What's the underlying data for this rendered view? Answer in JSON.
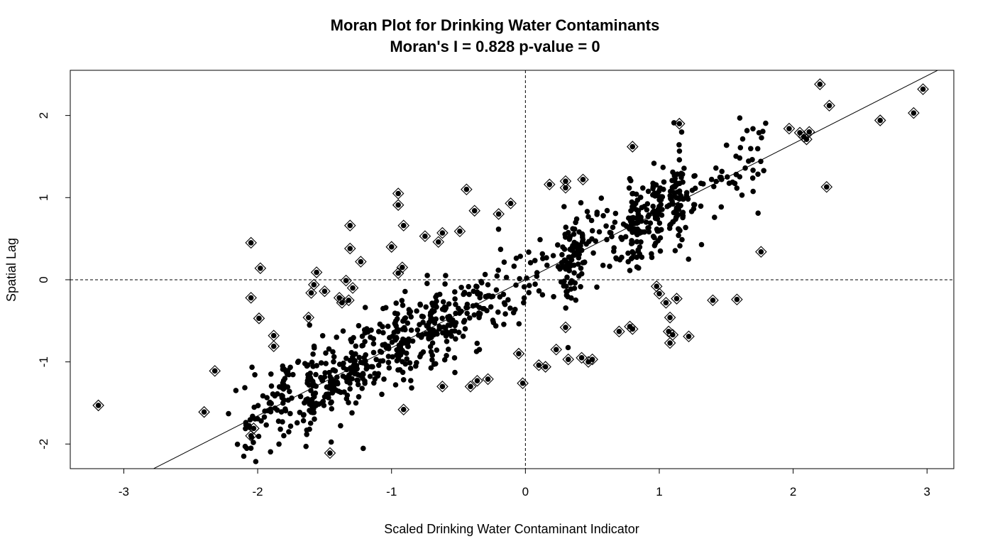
{
  "chart_data": {
    "type": "scatter",
    "title": "Moran Plot for Drinking Water Contaminants",
    "subtitle": "Moran's I = 0.828 p-value = 0",
    "xlabel": "Scaled Drinking Water Contaminant Indicator",
    "ylabel": "Spatial Lag",
    "xlim": [
      -3.4,
      3.2
    ],
    "ylim": [
      -2.3,
      2.55
    ],
    "x_ticks": [
      -3,
      -2,
      -1,
      0,
      1,
      2,
      3
    ],
    "y_ticks": [
      -2,
      -1,
      0,
      1,
      2
    ],
    "x_tick_labels": [
      "-3",
      "-2",
      "-1",
      "0",
      "1",
      "2",
      "3"
    ],
    "y_tick_labels": [
      "-2",
      "-1",
      "0",
      "1",
      "2"
    ],
    "reference_lines": {
      "x_mean": 0,
      "y_mean": 0
    },
    "regression_slope": 0.828,
    "grid": false,
    "colors": {
      "points": "#000000",
      "line": "#000000"
    },
    "influential_points": [
      [
        -3.19,
        -1.53
      ],
      [
        -2.4,
        -1.61
      ],
      [
        -2.32,
        -1.11
      ],
      [
        -2.05,
        0.45
      ],
      [
        -2.05,
        -0.22
      ],
      [
        -1.98,
        0.14
      ],
      [
        -1.99,
        -0.47
      ],
      [
        -1.88,
        -0.68
      ],
      [
        -1.88,
        -0.81
      ],
      [
        -2.05,
        -1.9
      ],
      [
        -2.03,
        -1.81
      ],
      [
        -1.56,
        0.09
      ],
      [
        -1.62,
        -0.46
      ],
      [
        -1.58,
        -0.06
      ],
      [
        -1.6,
        -0.16
      ],
      [
        -1.5,
        -0.14
      ],
      [
        -1.46,
        -2.11
      ],
      [
        -1.31,
        0.66
      ],
      [
        -1.31,
        0.38
      ],
      [
        -1.23,
        0.22
      ],
      [
        -1.34,
        -0.01
      ],
      [
        -1.29,
        -0.1
      ],
      [
        -1.32,
        -0.25
      ],
      [
        -1.37,
        -0.28
      ],
      [
        -1.39,
        -0.22
      ],
      [
        -0.95,
        1.05
      ],
      [
        -0.95,
        0.91
      ],
      [
        -0.91,
        0.66
      ],
      [
        -1.0,
        0.4
      ],
      [
        -0.92,
        0.15
      ],
      [
        -0.95,
        0.08
      ],
      [
        -0.91,
        -1.58
      ],
      [
        -0.75,
        0.53
      ],
      [
        -0.65,
        0.46
      ],
      [
        -0.62,
        0.57
      ],
      [
        -0.49,
        0.59
      ],
      [
        -0.44,
        1.1
      ],
      [
        -0.38,
        0.84
      ],
      [
        -0.2,
        0.8
      ],
      [
        -0.11,
        0.93
      ],
      [
        -0.62,
        -1.3
      ],
      [
        -0.41,
        -1.3
      ],
      [
        -0.36,
        -1.23
      ],
      [
        -0.28,
        -1.21
      ],
      [
        -0.05,
        -0.9
      ],
      [
        -0.02,
        -1.26
      ],
      [
        0.18,
        1.16
      ],
      [
        0.3,
        1.2
      ],
      [
        0.3,
        1.12
      ],
      [
        0.43,
        1.22
      ],
      [
        0.1,
        -1.04
      ],
      [
        0.15,
        -1.06
      ],
      [
        0.23,
        -0.85
      ],
      [
        0.3,
        -0.58
      ],
      [
        0.32,
        -0.97
      ],
      [
        0.42,
        -0.95
      ],
      [
        0.47,
        -1.0
      ],
      [
        0.5,
        -0.97
      ],
      [
        0.8,
        1.62
      ],
      [
        0.7,
        -0.63
      ],
      [
        0.78,
        -0.57
      ],
      [
        0.8,
        -0.6
      ],
      [
        0.98,
        -0.08
      ],
      [
        1.0,
        -0.17
      ],
      [
        1.05,
        -0.28
      ],
      [
        1.08,
        -0.46
      ],
      [
        1.07,
        -0.63
      ],
      [
        1.1,
        -0.67
      ],
      [
        1.08,
        -0.77
      ],
      [
        1.13,
        -0.23
      ],
      [
        1.15,
        1.9
      ],
      [
        1.22,
        -0.69
      ],
      [
        1.4,
        -0.25
      ],
      [
        1.58,
        -0.24
      ],
      [
        1.76,
        0.34
      ],
      [
        1.97,
        1.84
      ],
      [
        2.05,
        1.79
      ],
      [
        2.08,
        1.74
      ],
      [
        2.1,
        1.71
      ],
      [
        2.12,
        1.8
      ],
      [
        2.2,
        2.38
      ],
      [
        2.27,
        2.12
      ],
      [
        2.25,
        1.13
      ],
      [
        2.65,
        1.94
      ],
      [
        2.9,
        2.03
      ],
      [
        2.97,
        2.32
      ]
    ],
    "regular_points_summary": "dense cloud of ~1000 regular observations following the regression line"
  }
}
